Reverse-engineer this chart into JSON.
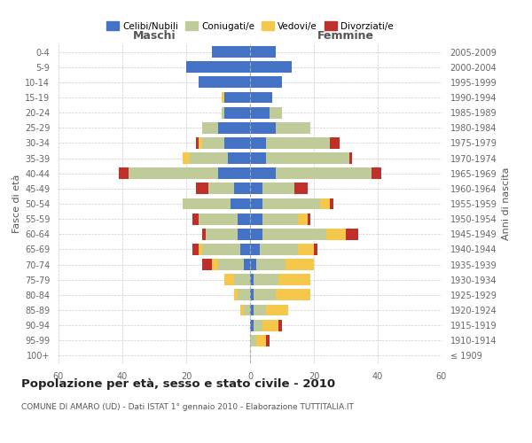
{
  "age_groups": [
    "100+",
    "95-99",
    "90-94",
    "85-89",
    "80-84",
    "75-79",
    "70-74",
    "65-69",
    "60-64",
    "55-59",
    "50-54",
    "45-49",
    "40-44",
    "35-39",
    "30-34",
    "25-29",
    "20-24",
    "15-19",
    "10-14",
    "5-9",
    "0-4"
  ],
  "birth_years": [
    "≤ 1909",
    "1910-1914",
    "1915-1919",
    "1920-1924",
    "1925-1929",
    "1930-1934",
    "1935-1939",
    "1940-1944",
    "1945-1949",
    "1950-1954",
    "1955-1959",
    "1960-1964",
    "1965-1969",
    "1970-1974",
    "1975-1979",
    "1980-1984",
    "1985-1989",
    "1990-1994",
    "1995-1999",
    "2000-2004",
    "2005-2009"
  ],
  "males": {
    "celibi": [
      0,
      0,
      0,
      0,
      0,
      0,
      2,
      3,
      4,
      4,
      6,
      5,
      10,
      7,
      8,
      10,
      8,
      8,
      16,
      20,
      12
    ],
    "coniugati": [
      0,
      0,
      0,
      2,
      4,
      5,
      8,
      12,
      10,
      12,
      15,
      8,
      28,
      12,
      7,
      5,
      1,
      0,
      0,
      0,
      0
    ],
    "vedovi": [
      0,
      0,
      0,
      1,
      1,
      3,
      2,
      1,
      0,
      0,
      0,
      0,
      0,
      2,
      1,
      0,
      0,
      1,
      0,
      0,
      0
    ],
    "divorziati": [
      0,
      0,
      0,
      0,
      0,
      0,
      3,
      2,
      1,
      2,
      0,
      4,
      3,
      0,
      1,
      0,
      0,
      0,
      0,
      0,
      0
    ]
  },
  "females": {
    "nubili": [
      0,
      0,
      1,
      1,
      1,
      1,
      2,
      3,
      4,
      4,
      4,
      4,
      8,
      5,
      5,
      8,
      6,
      7,
      10,
      13,
      8
    ],
    "coniugate": [
      0,
      2,
      3,
      4,
      7,
      8,
      9,
      12,
      20,
      11,
      18,
      10,
      30,
      26,
      20,
      11,
      4,
      0,
      0,
      0,
      0
    ],
    "vedove": [
      0,
      3,
      5,
      7,
      11,
      10,
      9,
      5,
      6,
      3,
      3,
      0,
      0,
      0,
      0,
      0,
      0,
      0,
      0,
      0,
      0
    ],
    "divorziate": [
      0,
      1,
      1,
      0,
      0,
      0,
      0,
      1,
      4,
      1,
      1,
      4,
      3,
      1,
      3,
      0,
      0,
      0,
      0,
      0,
      0
    ]
  },
  "colors": {
    "celibi": "#4472C4",
    "coniugati": "#BFCC99",
    "vedovi": "#F5C84C",
    "divorziati": "#C0302A"
  },
  "xlim": 60,
  "title": "Popolazione per età, sesso e stato civile - 2010",
  "subtitle": "COMUNE DI AMARO (UD) - Dati ISTAT 1° gennaio 2010 - Elaborazione TUTTITALIA.IT",
  "xlabel_left": "Maschi",
  "xlabel_right": "Femmine",
  "ylabel_left": "Fasce di età",
  "ylabel_right": "Anni di nascita",
  "legend_labels": [
    "Celibi/Nubili",
    "Coniugati/e",
    "Vedovi/e",
    "Divorziati/e"
  ],
  "bg_color": "#FFFFFF",
  "plot_bg_color": "#FFFFFF",
  "grid_color": "#CCCCCC"
}
